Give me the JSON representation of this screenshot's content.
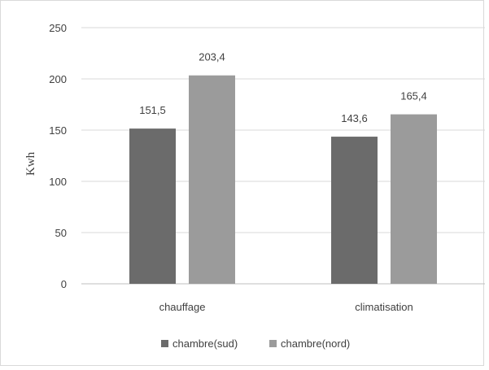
{
  "chart_data": {
    "type": "bar",
    "title": "",
    "xlabel": "",
    "ylabel": "Kwh",
    "ylim": [
      0,
      250
    ],
    "yticks": [
      0,
      50,
      100,
      150,
      200,
      250
    ],
    "ytick_labels": [
      "0",
      "50",
      "100",
      "150",
      "200",
      "250"
    ],
    "grid": true,
    "legend_position": "bottom",
    "categories": [
      "chauffage",
      "climatisation"
    ],
    "series": [
      {
        "name": "chambre(sud)",
        "color": "#6b6b6b",
        "values": [
          151.5,
          143.6
        ],
        "labels": [
          "151,5",
          "143,6"
        ]
      },
      {
        "name": "chambre(nord)",
        "color": "#9b9b9b",
        "values": [
          203.4,
          165.4
        ],
        "labels": [
          "203,4",
          "165,4"
        ]
      }
    ]
  }
}
